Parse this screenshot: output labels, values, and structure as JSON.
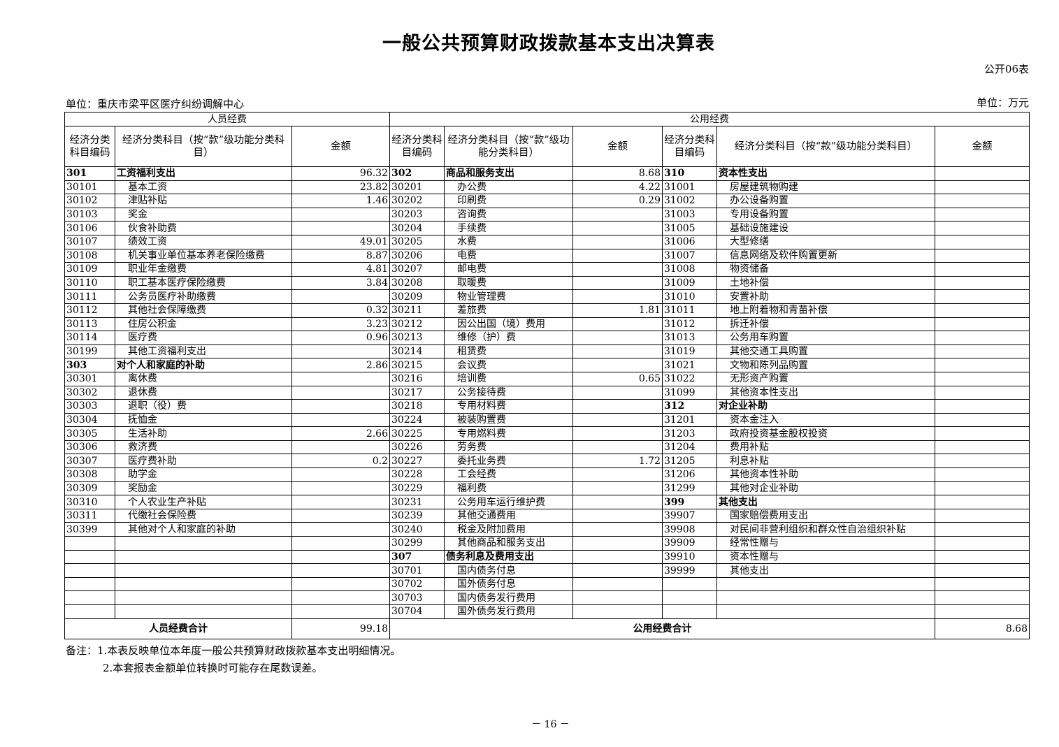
{
  "title": "一般公共预算财政拨款基本支出决算表",
  "form_no": "公开06表",
  "unit_org": "单位：重庆市梁平区医疗纠纷调解中心",
  "unit_money": "单位：万元",
  "groups": {
    "personnel": "人员经费",
    "public": "公用经费"
  },
  "headers": {
    "code": "经济分类科目编码",
    "name": "经济分类科目（按“款”级功能分类科目）",
    "amount": "金额"
  },
  "left": [
    [
      "301",
      "工资福利支出",
      "96.32"
    ],
    [
      "30101",
      "基本工资",
      "23.82"
    ],
    [
      "30102",
      "津贴补贴",
      "1.46"
    ],
    [
      "30103",
      "奖金",
      ""
    ],
    [
      "30106",
      "伙食补助费",
      ""
    ],
    [
      "30107",
      "绩效工资",
      "49.01"
    ],
    [
      "30108",
      "机关事业单位基本养老保险缴费",
      "8.87"
    ],
    [
      "30109",
      "职业年金缴费",
      "4.81"
    ],
    [
      "30110",
      "职工基本医疗保险缴费",
      "3.84"
    ],
    [
      "30111",
      "公务员医疗补助缴费",
      ""
    ],
    [
      "30112",
      "其他社会保障缴费",
      "0.32"
    ],
    [
      "30113",
      "住房公积金",
      "3.23"
    ],
    [
      "30114",
      "医疗费",
      "0.96"
    ],
    [
      "30199",
      "其他工资福利支出",
      ""
    ],
    [
      "303",
      "对个人和家庭的补助",
      "2.86"
    ],
    [
      "30301",
      "离休费",
      ""
    ],
    [
      "30302",
      "退休费",
      ""
    ],
    [
      "30303",
      "退职（役）费",
      ""
    ],
    [
      "30304",
      "抚恤金",
      ""
    ],
    [
      "30305",
      "生活补助",
      "2.66"
    ],
    [
      "30306",
      "救济费",
      ""
    ],
    [
      "30307",
      "医疗费补助",
      "0.2"
    ],
    [
      "30308",
      "助学金",
      ""
    ],
    [
      "30309",
      "奖励金",
      ""
    ],
    [
      "30310",
      "个人农业生产补贴",
      ""
    ],
    [
      "30311",
      "代缴社会保险费",
      ""
    ],
    [
      "30399",
      "其他对个人和家庭的补助",
      ""
    ],
    [
      "",
      "",
      ""
    ],
    [
      "",
      "",
      ""
    ],
    [
      "",
      "",
      ""
    ],
    [
      "",
      "",
      ""
    ],
    [
      "",
      "",
      ""
    ],
    [
      "",
      "",
      ""
    ]
  ],
  "middle": [
    [
      "302",
      "商品和服务支出",
      "8.68"
    ],
    [
      "30201",
      "办公费",
      "4.22"
    ],
    [
      "30202",
      "印刷费",
      "0.29"
    ],
    [
      "30203",
      "咨询费",
      ""
    ],
    [
      "30204",
      "手续费",
      ""
    ],
    [
      "30205",
      "水费",
      ""
    ],
    [
      "30206",
      "电费",
      ""
    ],
    [
      "30207",
      "邮电费",
      ""
    ],
    [
      "30208",
      "取暖费",
      ""
    ],
    [
      "30209",
      "物业管理费",
      ""
    ],
    [
      "30211",
      "差旅费",
      "1.81"
    ],
    [
      "30212",
      "因公出国（境）费用",
      ""
    ],
    [
      "30213",
      "维修（护）费",
      ""
    ],
    [
      "30214",
      "租赁费",
      ""
    ],
    [
      "30215",
      "会议费",
      ""
    ],
    [
      "30216",
      "培训费",
      "0.65"
    ],
    [
      "30217",
      "公务接待费",
      ""
    ],
    [
      "30218",
      "专用材料费",
      ""
    ],
    [
      "30224",
      "被装购置费",
      ""
    ],
    [
      "30225",
      "专用燃料费",
      ""
    ],
    [
      "30226",
      "劳务费",
      ""
    ],
    [
      "30227",
      "委托业务费",
      "1.72"
    ],
    [
      "30228",
      "工会经费",
      ""
    ],
    [
      "30229",
      "福利费",
      ""
    ],
    [
      "30231",
      "公务用车运行维护费",
      ""
    ],
    [
      "30239",
      "其他交通费用",
      ""
    ],
    [
      "30240",
      "税金及附加费用",
      ""
    ],
    [
      "30299",
      "其他商品和服务支出",
      ""
    ],
    [
      "307",
      "债务利息及费用支出",
      ""
    ],
    [
      "30701",
      "国内债务付息",
      ""
    ],
    [
      "30702",
      "国外债务付息",
      ""
    ],
    [
      "30703",
      "国内债务发行费用",
      ""
    ],
    [
      "30704",
      "国外债务发行费用",
      ""
    ]
  ],
  "right": [
    [
      "310",
      "资本性支出",
      ""
    ],
    [
      "31001",
      "房屋建筑物购建",
      ""
    ],
    [
      "31002",
      "办公设备购置",
      ""
    ],
    [
      "31003",
      "专用设备购置",
      ""
    ],
    [
      "31005",
      "基础设施建设",
      ""
    ],
    [
      "31006",
      "大型修缮",
      ""
    ],
    [
      "31007",
      "信息网络及软件购置更新",
      ""
    ],
    [
      "31008",
      "物资储备",
      ""
    ],
    [
      "31009",
      "土地补偿",
      ""
    ],
    [
      "31010",
      "安置补助",
      ""
    ],
    [
      "31011",
      "地上附着物和青苗补偿",
      ""
    ],
    [
      "31012",
      "拆迁补偿",
      ""
    ],
    [
      "31013",
      "公务用车购置",
      ""
    ],
    [
      "31019",
      "其他交通工具购置",
      ""
    ],
    [
      "31021",
      "文物和陈列品购置",
      ""
    ],
    [
      "31022",
      "无形资产购置",
      ""
    ],
    [
      "31099",
      "其他资本性支出",
      ""
    ],
    [
      "312",
      "对企业补助",
      ""
    ],
    [
      "31201",
      "资本金注入",
      ""
    ],
    [
      "31203",
      "政府投资基金股权投资",
      ""
    ],
    [
      "31204",
      "费用补贴",
      ""
    ],
    [
      "31205",
      "利息补贴",
      ""
    ],
    [
      "31206",
      "其他资本性补助",
      ""
    ],
    [
      "31299",
      "其他对企业补助",
      ""
    ],
    [
      "399",
      "其他支出",
      ""
    ],
    [
      "39907",
      "国家赔偿费用支出",
      ""
    ],
    [
      "39908",
      "对民间非营利组织和群众性自治组织补贴",
      ""
    ],
    [
      "39909",
      "经常性赠与",
      ""
    ],
    [
      "39910",
      "资本性赠与",
      ""
    ],
    [
      "39999",
      "其他支出",
      ""
    ],
    [
      "",
      "",
      ""
    ],
    [
      "",
      "",
      ""
    ],
    [
      "",
      "",
      ""
    ]
  ],
  "totals": {
    "personnel_label": "人员经费合计",
    "personnel_value": "99.18",
    "public_label": "公用经费合计",
    "public_value": "8.68"
  },
  "notes": [
    "备注：1.本表反映单位本年度一般公共预算财政拨款基本支出明细情况。",
    "2.本套报表金额单位转换时可能存在尾数误差。"
  ],
  "page_number": "－ 16 －"
}
